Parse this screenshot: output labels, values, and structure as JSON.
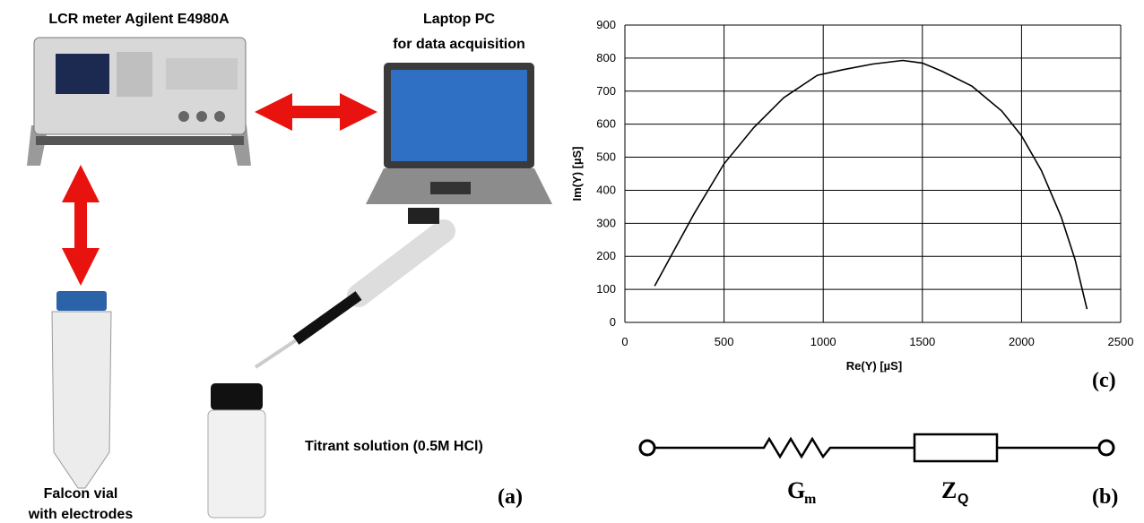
{
  "chart_data": {
    "type": "line",
    "x_label": "Re(Y) [µS]",
    "y_label": "Im(Y) [µS]",
    "panel": "(c)",
    "xlim": [
      0,
      2500
    ],
    "xticks": [
      0,
      500,
      1000,
      1500,
      2000,
      2500
    ],
    "ylim": [
      0,
      900
    ],
    "yticks": [
      0,
      100,
      200,
      300,
      400,
      500,
      600,
      700,
      800,
      900
    ],
    "grid": true,
    "series": [
      {
        "color": "#000000",
        "x": [
          150,
          250,
          350,
          500,
          650,
          800,
          970,
          1100,
          1250,
          1400,
          1500,
          1600,
          1750,
          1900,
          2000,
          2100,
          2200,
          2270,
          2330
        ],
        "values": [
          110,
          220,
          330,
          480,
          590,
          680,
          748,
          765,
          782,
          793,
          785,
          760,
          715,
          640,
          565,
          460,
          320,
          190,
          40
        ]
      }
    ]
  },
  "setup": {
    "lcr_label": "LCR meter Agilent E4980A",
    "laptop_label": [
      "Laptop PC",
      "for data acquisition"
    ],
    "vial_label": [
      "Falcon vial",
      "with electrodes"
    ],
    "titrant_label": "Titrant solution (0.5M HCl)",
    "panel": "(a)"
  },
  "circuit": {
    "conductance": {
      "symbol": "G",
      "subscript": "m"
    },
    "impedance": {
      "symbol": "Z",
      "subscript": "Q"
    },
    "panel": "(b)"
  }
}
